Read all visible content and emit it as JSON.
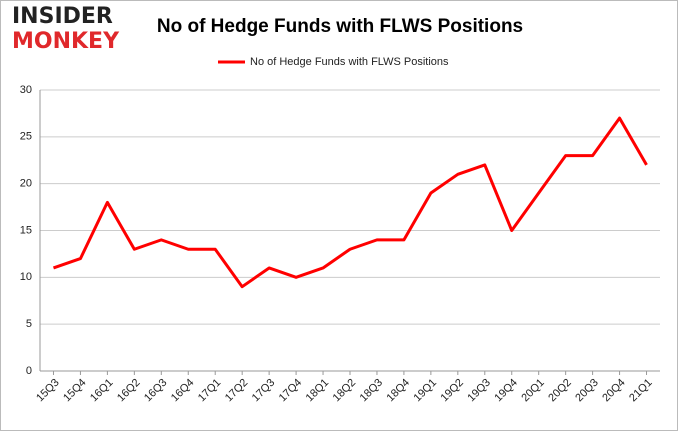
{
  "logo": {
    "line1": "INSIDER",
    "line2": "MONKEY"
  },
  "chart_data": {
    "type": "line",
    "title": "No of Hedge Funds with FLWS Positions",
    "categories": [
      "15Q3",
      "15Q4",
      "16Q1",
      "16Q2",
      "16Q3",
      "16Q4",
      "17Q1",
      "17Q2",
      "17Q3",
      "17Q4",
      "18Q1",
      "18Q2",
      "18Q3",
      "18Q4",
      "19Q1",
      "19Q2",
      "19Q3",
      "19Q4",
      "20Q1",
      "20Q2",
      "20Q3",
      "20Q4",
      "21Q1"
    ],
    "series": [
      {
        "name": "No of Hedge Funds with FLWS Positions",
        "color": "#ff0000",
        "values": [
          11,
          12,
          18,
          13,
          14,
          13,
          13,
          9,
          11,
          10,
          11,
          13,
          14,
          14,
          19,
          21,
          22,
          15,
          19,
          23,
          23,
          27,
          22
        ]
      }
    ],
    "ylim": [
      0,
      30
    ],
    "yticks": [
      0,
      5,
      10,
      15,
      20,
      25,
      30
    ],
    "grid": true,
    "legend": "top"
  }
}
